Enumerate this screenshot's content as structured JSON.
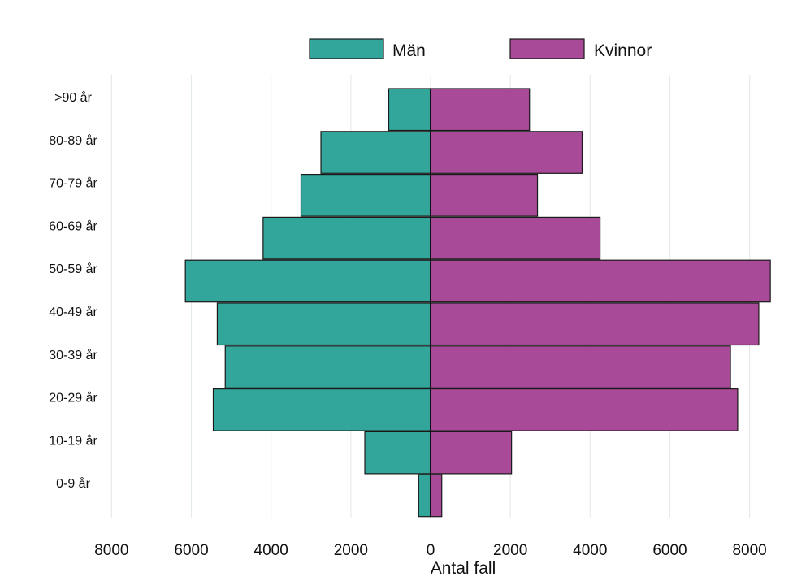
{
  "chart_data": {
    "type": "bar",
    "orientation": "horizontal-diverging",
    "categories": [
      "0-9 år",
      "10-19 år",
      "20-29 år",
      "30-39 år",
      "40-49 år",
      "50-59 år",
      "60-69 år",
      "70-79 år",
      "80-89 år",
      ">90 år"
    ],
    "series": [
      {
        "name": "Män",
        "side": "left",
        "color": "#33a69b",
        "values": [
          300,
          1650,
          5450,
          5150,
          5350,
          6150,
          4200,
          3250,
          2750,
          1050
        ]
      },
      {
        "name": "Kvinnor",
        "side": "right",
        "color": "#a84a98",
        "values": [
          280,
          2030,
          7700,
          7520,
          8230,
          8520,
          4250,
          2680,
          3800,
          2480
        ]
      }
    ],
    "xlabel": "Antal fall",
    "xticks": [
      -8000,
      -6000,
      -4000,
      -2000,
      0,
      2000,
      4000,
      6000,
      8000
    ],
    "xtick_labels": [
      "8000",
      "6000",
      "4000",
      "2000",
      "0",
      "2000",
      "4000",
      "6000",
      "8000"
    ],
    "xlim": [
      -8000,
      8500
    ],
    "grid": "vertical",
    "legend_position": "top-center"
  }
}
